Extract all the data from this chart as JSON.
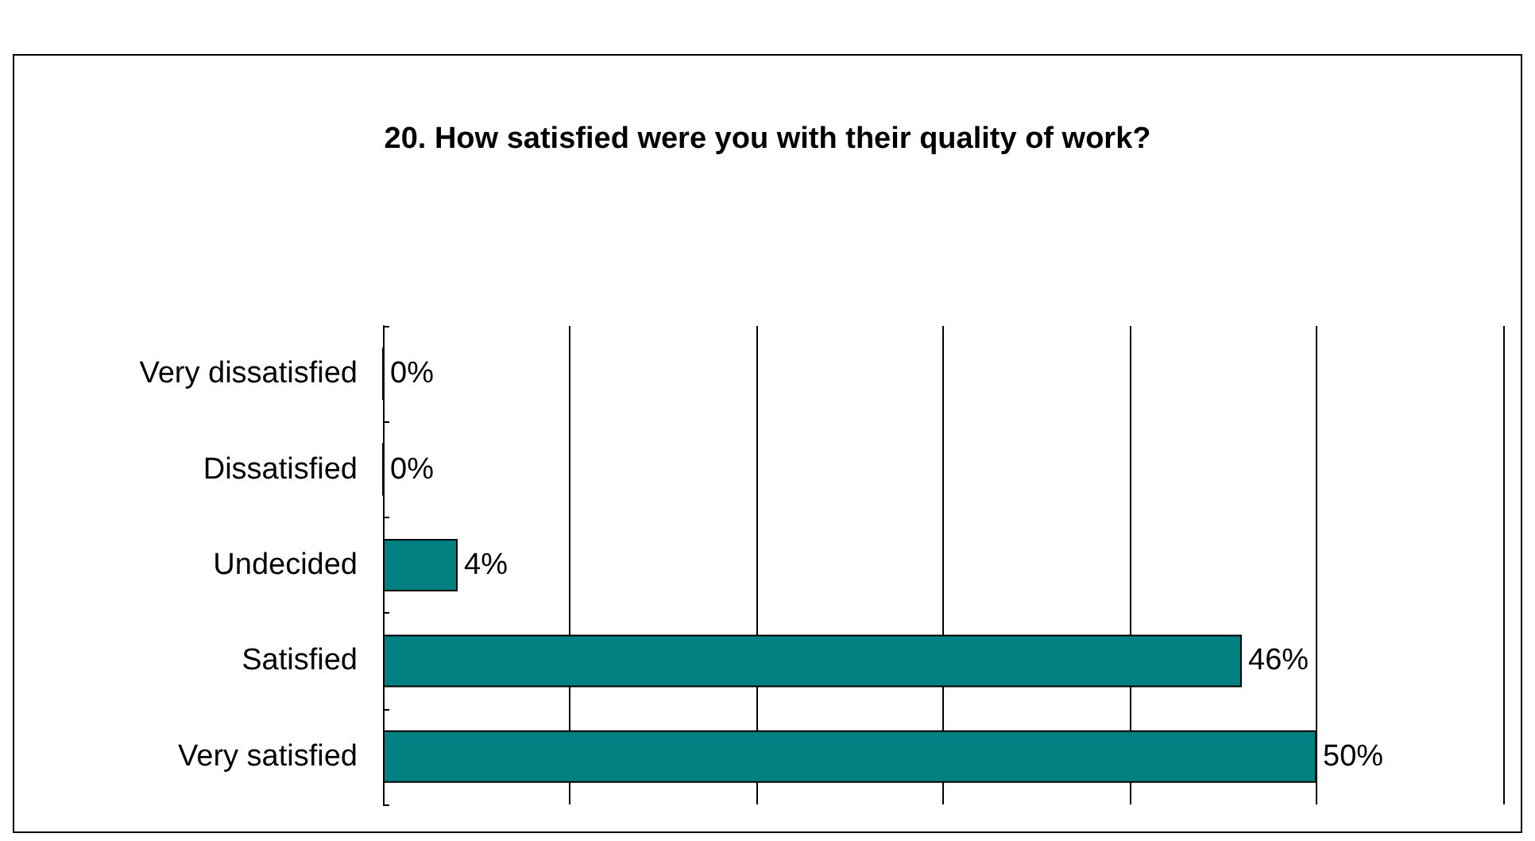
{
  "chart_data": {
    "type": "bar",
    "orientation": "horizontal",
    "title": "20. How satisfied were you with their quality of work?",
    "categories": [
      "Very dissatisfied",
      "Dissatisfied",
      "Undecided",
      "Satisfied",
      "Very satisfied"
    ],
    "values": [
      0,
      0,
      4,
      46,
      50
    ],
    "value_labels": [
      "0%",
      "0%",
      "4%",
      "46%",
      "50%"
    ],
    "color": "#008080",
    "xlim": [
      0,
      60
    ],
    "xticks": [
      {
        "value": 0,
        "label": null
      },
      {
        "value": 10,
        "label": null
      },
      {
        "value": 20,
        "label": null
      },
      {
        "value": 30,
        "label": null
      },
      {
        "value": 40,
        "label": null
      },
      {
        "value": 50,
        "label": null
      },
      {
        "value": 60,
        "label": null
      }
    ],
    "grid": "x",
    "tick_labels": "y"
  }
}
